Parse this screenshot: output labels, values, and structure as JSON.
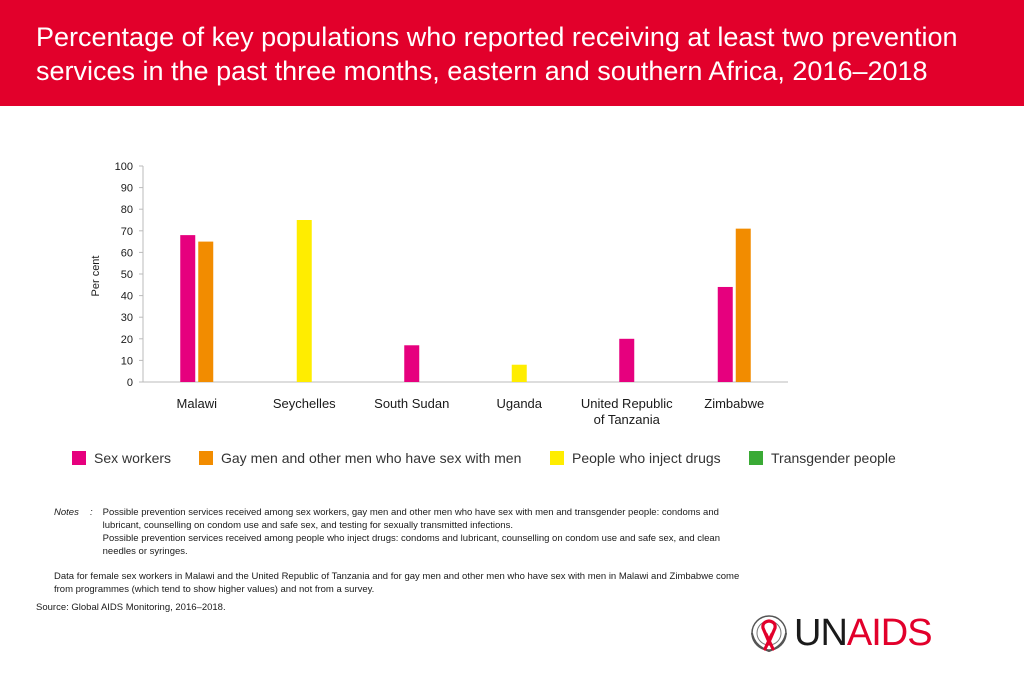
{
  "header": {
    "title": "Percentage of key populations who reported receiving at least two prevention services in the past three months, eastern and southern Africa, 2016–2018",
    "background_color": "#e2002b"
  },
  "chart_data": {
    "type": "bar",
    "title": "",
    "xlabel": "",
    "ylabel": "Per cent",
    "ylim": [
      0,
      100
    ],
    "yticks": [
      0,
      10,
      20,
      30,
      40,
      50,
      60,
      70,
      80,
      90,
      100
    ],
    "grid": false,
    "legend_position": "bottom",
    "categories": [
      "Malawi",
      "Seychelles",
      "South Sudan",
      "Uganda",
      "United Republic of Tanzania",
      "Zimbabwe"
    ],
    "series": [
      {
        "name": "Sex workers",
        "color": "#e6007e",
        "values": [
          68,
          null,
          17,
          null,
          20,
          44
        ]
      },
      {
        "name": "Gay men and other men who have sex with men",
        "color": "#f28c00",
        "values": [
          65,
          null,
          null,
          null,
          null,
          71
        ]
      },
      {
        "name": "People who inject drugs",
        "color": "#ffed00",
        "values": [
          null,
          75,
          null,
          8,
          null,
          null
        ]
      },
      {
        "name": "Transgender people",
        "color": "#3aaa35",
        "values": [
          null,
          null,
          null,
          null,
          null,
          null
        ]
      }
    ]
  },
  "notes": {
    "label": "Notes",
    "line1": "Possible prevention services received among sex workers,  gay men and other men who have sex with men and transgender people: condoms and lubricant, counselling on condom use and  safe sex, and testing for sexually transmitted infections.",
    "line2": "Possible prevention services received among people who inject drugs: condoms and lubricant, counselling on condom use and safe sex, and clean needles or syringes.",
    "data_note": "Data for female sex workers in Malawi and the United Republic of  Tanzania and for gay men and other men who have sex with men in Malawi and Zimbabwe come from programmes (which tend to show higher values) and not from a survey."
  },
  "source": "Source: Global AIDS Monitoring, 2016–2018.",
  "logo": {
    "prefix": "UN",
    "suffix": "AIDS",
    "icon": "un-emblem-red-ribbon-icon"
  }
}
